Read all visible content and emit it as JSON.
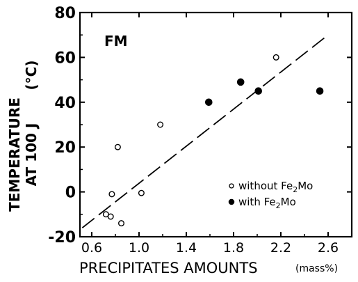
{
  "chart_data": {
    "type": "scatter",
    "title": "",
    "annotation": "FM",
    "ylabel_line1": "TEMPERATURE",
    "ylabel_line2": "AT  100  J",
    "yunit": "(°C)",
    "xlabel": "PRECIPITATES  AMOUNTS",
    "xunit": "(mass%)",
    "xlim": [
      0.5,
      2.8
    ],
    "ylim": [
      -20,
      80
    ],
    "xticks": [
      0.6,
      1.0,
      1.4,
      1.8,
      2.2,
      2.6
    ],
    "xtick_labels": [
      "0.6",
      "1.0",
      "1.4",
      "1.8",
      "2.2",
      "2.6"
    ],
    "yticks": [
      -20,
      0,
      20,
      40,
      60,
      80
    ],
    "ytick_labels": [
      "-20",
      "0",
      "20",
      "40",
      "60",
      "80"
    ],
    "series": [
      {
        "name": "without Fe2Mo",
        "marker": "open-circle",
        "points": [
          {
            "x": 0.72,
            "y": -10
          },
          {
            "x": 0.76,
            "y": -11
          },
          {
            "x": 0.77,
            "y": -1
          },
          {
            "x": 0.82,
            "y": 20
          },
          {
            "x": 0.85,
            "y": -14
          },
          {
            "x": 1.02,
            "y": -0.5
          },
          {
            "x": 1.18,
            "y": 30
          },
          {
            "x": 2.16,
            "y": 60
          }
        ]
      },
      {
        "name": "with Fe2Mo",
        "marker": "filled-circle",
        "points": [
          {
            "x": 1.59,
            "y": 40
          },
          {
            "x": 1.86,
            "y": 49
          },
          {
            "x": 2.01,
            "y": 45
          },
          {
            "x": 2.53,
            "y": 45
          }
        ]
      }
    ],
    "fit_line": {
      "style": "dashed",
      "points": [
        {
          "x": 0.52,
          "y": -16
        },
        {
          "x": 2.6,
          "y": 70
        }
      ]
    },
    "legend": {
      "placement": "bottom-right",
      "entries": [
        {
          "label_base": "without Fe",
          "label_sub": "2",
          "label_tail": "Mo",
          "marker": "open-circle"
        },
        {
          "label_base": "with Fe",
          "label_sub": "2",
          "label_tail": "Mo",
          "marker": "filled-circle"
        }
      ]
    }
  }
}
